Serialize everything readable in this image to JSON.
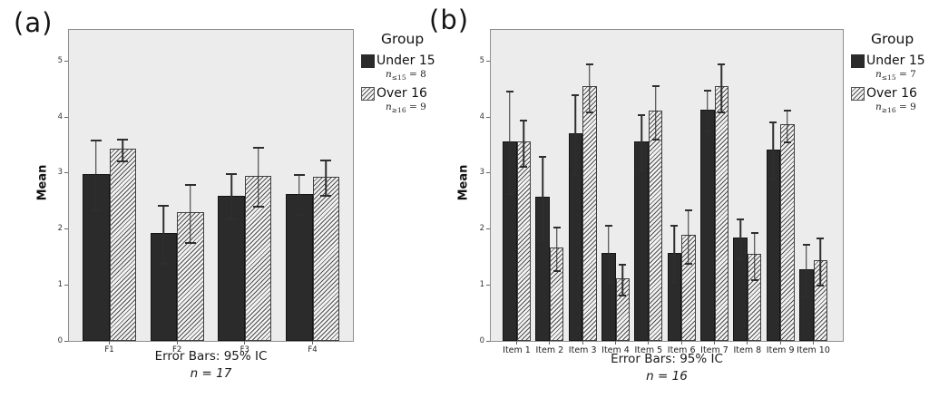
{
  "colors": {
    "bar_solid": "#2b2b2b",
    "bar_hatch_line": "#4f4f4f",
    "bar_hatch_bg": "#f2f2f2",
    "plot_background": "#ececec",
    "frame": "#8e8e8e",
    "error_bar": "#2e2e2e"
  },
  "chart_data": [
    {
      "type": "bar",
      "panel_label": "(a)",
      "ylabel": "Mean",
      "ylim": [
        0,
        5.56
      ],
      "yticks": [
        0,
        1,
        2,
        3,
        4,
        5
      ],
      "grid": false,
      "legend": {
        "title": "Group",
        "position": "right",
        "entries": [
          {
            "label": "Under 15",
            "swatch": "solid-dark",
            "note_var": "n",
            "note_sub": "≤15",
            "note_eq": "= 8"
          },
          {
            "label": "Over 16",
            "swatch": "hatched-diagonal",
            "note_var": "n",
            "note_sub": "≥16",
            "note_eq": "= 9"
          }
        ]
      },
      "categories": [
        "F1",
        "F2",
        "F3",
        "F4"
      ],
      "series": [
        {
          "name": "Under 15",
          "values": [
            2.98,
            1.93,
            2.6,
            2.63
          ],
          "ci_low": [
            2.38,
            1.43,
            2.22,
            2.3
          ],
          "ci_high": [
            3.6,
            2.43,
            3.0,
            2.98
          ]
        },
        {
          "name": "Over 16",
          "values": [
            3.44,
            2.3,
            2.95,
            2.93
          ],
          "ci_low": [
            3.25,
            1.8,
            2.45,
            2.64
          ],
          "ci_high": [
            3.62,
            2.81,
            3.47,
            3.25
          ]
        }
      ],
      "annotations": {
        "caption": "Error Bars: 95% IC",
        "n_note": "n = 17"
      }
    },
    {
      "type": "bar",
      "panel_label": "(b)",
      "ylabel": "Mean",
      "ylim": [
        0,
        5.56
      ],
      "yticks": [
        0,
        1,
        2,
        3,
        4,
        5
      ],
      "grid": false,
      "legend": {
        "title": "Group",
        "position": "right",
        "entries": [
          {
            "label": "Under 15",
            "swatch": "solid-dark",
            "note_var": "n",
            "note_sub": "≤15",
            "note_eq": "= 7"
          },
          {
            "label": "Over 16",
            "swatch": "hatched-diagonal",
            "note_var": "n",
            "note_sub": "≥16",
            "note_eq": "= 9"
          }
        ]
      },
      "categories": [
        "Item 1",
        "Item 2",
        "Item 3",
        "Item 4",
        "Item 5",
        "Item 6",
        "Item 7",
        "Item 8",
        "Item 9",
        "Item 10"
      ],
      "series": [
        {
          "name": "Under 15",
          "values": [
            3.57,
            2.57,
            3.71,
            1.57,
            3.57,
            1.57,
            4.14,
            1.85,
            3.42,
            1.28
          ],
          "ci_low": [
            2.68,
            1.85,
            3.02,
            1.08,
            3.09,
            1.08,
            3.79,
            1.51,
            2.93,
            0.84
          ],
          "ci_high": [
            4.47,
            3.3,
            4.41,
            2.07,
            4.06,
            2.07,
            4.49,
            2.19,
            3.92,
            1.73
          ]
        },
        {
          "name": "Over 16",
          "values": [
            3.56,
            1.67,
            4.55,
            1.12,
            4.11,
            1.89,
            4.55,
            1.55,
            3.87,
            1.44
          ],
          "ci_low": [
            3.16,
            1.3,
            4.14,
            0.86,
            3.65,
            1.43,
            4.14,
            1.14,
            3.6,
            1.04
          ],
          "ci_high": [
            3.96,
            2.05,
            4.96,
            1.38,
            4.57,
            2.35,
            4.96,
            1.95,
            4.14,
            1.84
          ]
        }
      ],
      "annotations": {
        "caption": "Error Bars: 95% IC",
        "n_note": "n = 16"
      }
    }
  ]
}
